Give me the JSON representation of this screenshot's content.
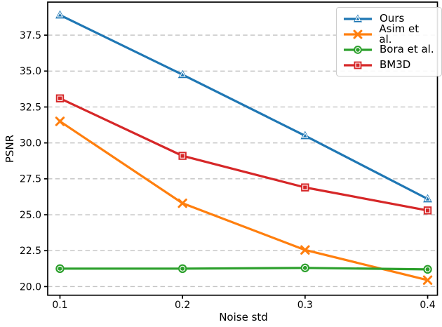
{
  "chart_data": {
    "type": "line",
    "title": "",
    "xlabel": "Noise std",
    "ylabel": "PSNR",
    "x": [
      0.1,
      0.2,
      0.3,
      0.4
    ],
    "xtick_labels": [
      "0.1",
      "0.2",
      "0.3",
      "0.4"
    ],
    "yticks": [
      20.0,
      22.5,
      25.0,
      27.5,
      30.0,
      32.5,
      35.0,
      37.5
    ],
    "ytick_labels": [
      "20.0",
      "22.5",
      "25.0",
      "27.5",
      "30.0",
      "32.5",
      "35.0",
      "37.5"
    ],
    "xlim": [
      0.09,
      0.408
    ],
    "ylim": [
      19.4,
      39.8
    ],
    "grid": "horizontal-dashed",
    "grid_color": "#c2c2c2",
    "axis_color": "#000000",
    "legend_position": "top-right",
    "series": [
      {
        "name": "Ours",
        "color": "#1f77b4",
        "marker": "triangle-up",
        "values": [
          38.9,
          34.75,
          30.5,
          26.1
        ]
      },
      {
        "name": "Asim et al.",
        "color": "#ff7f0e",
        "marker": "x",
        "values": [
          31.5,
          25.8,
          22.55,
          20.45
        ]
      },
      {
        "name": "Bora et al.",
        "color": "#2ca02c",
        "marker": "circle",
        "values": [
          21.25,
          21.25,
          21.3,
          21.2
        ]
      },
      {
        "name": "BM3D",
        "color": "#d62728",
        "marker": "square",
        "values": [
          33.1,
          29.1,
          26.9,
          25.3
        ]
      }
    ]
  }
}
